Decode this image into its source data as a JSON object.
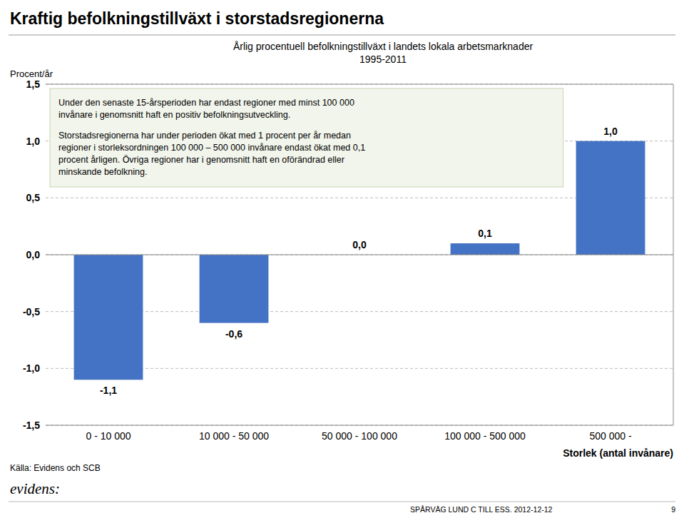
{
  "chart_data": {
    "type": "bar",
    "title": "Kraftig befolkningstillväxt i storstadsregionerna",
    "subtitle": [
      "Årlig procentuell befolkningstillväxt i landets lokala arbetsmarknader",
      "1995-2011"
    ],
    "ylabel": "Procent/år",
    "xlabel": "Storlek (antal invånare)",
    "categories": [
      "0 - 10 000",
      "10 000 - 50 000",
      "50 000 - 100 000",
      "100 000 - 500 000",
      "500 000 -"
    ],
    "values": [
      -1.1,
      -0.6,
      0.0,
      0.1,
      1.0
    ],
    "value_labels": [
      "-1,1",
      "-0,6",
      "0,0",
      "0,1",
      "1,0"
    ],
    "data_labels": true,
    "color": "#4472C4",
    "ylim": [
      -1.5,
      1.5
    ],
    "yticks": [
      {
        "value": -1.5,
        "label": "-1,5"
      },
      {
        "value": -1.0,
        "label": "-1,0"
      },
      {
        "value": -0.5,
        "label": "-0,5"
      },
      {
        "value": 0.0,
        "label": "0,0"
      },
      {
        "value": 0.5,
        "label": "0,5"
      },
      {
        "value": 1.0,
        "label": "1,0"
      },
      {
        "value": 1.5,
        "label": "1,5"
      }
    ],
    "grid": true,
    "text_box": [
      [
        "Under den senaste 15-årsperioden har endast regioner med minst 100 000",
        "invånare i genomsnitt haft en positiv befolkningsutveckling."
      ],
      [
        "Storstadsregionerna har under perioden ökat med 1 procent per år medan",
        "regioner i storleksordningen 100 000 – 500 000 invånare endast ökat med 0,1",
        "procent årligen. Övriga regioner har i genomsnitt haft en oförändrad eller",
        "minskande befolkning."
      ]
    ],
    "source": "Källa: Evidens och SCB",
    "logo": "evidens:",
    "footer": "SPÅRVÄG LUND C TILL ESS. 2012-12-12",
    "page_number": "9"
  }
}
